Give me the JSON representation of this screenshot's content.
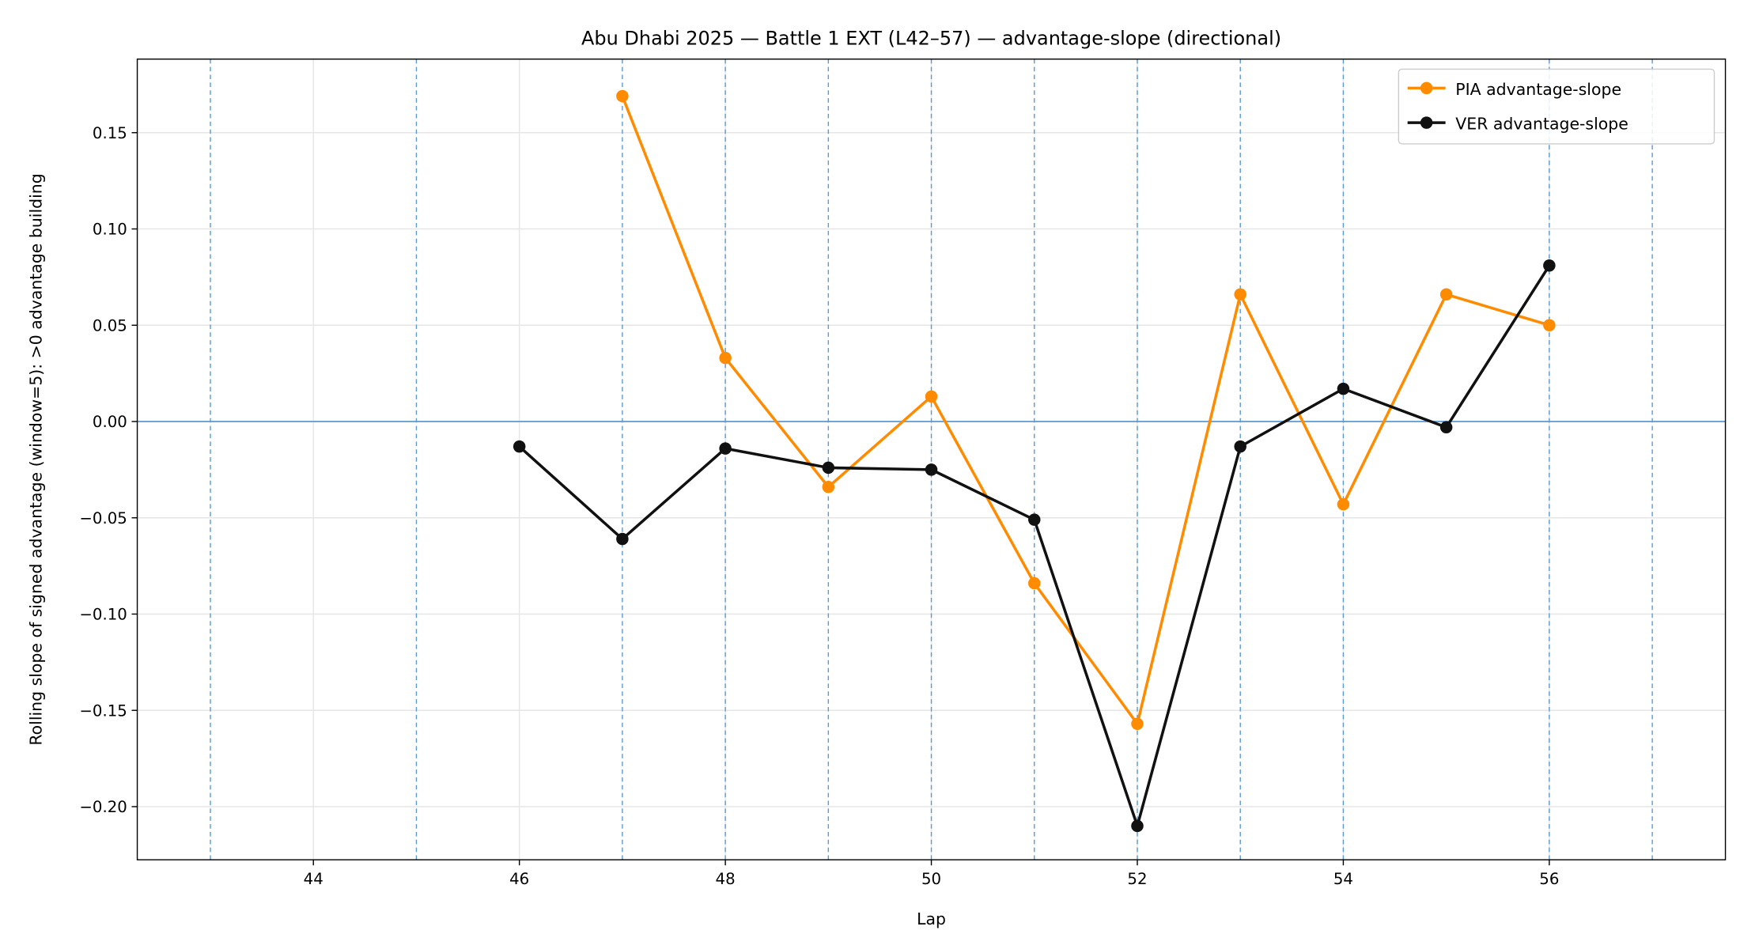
{
  "chart_data": {
    "type": "line",
    "title": "Abu Dhabi 2025 — Battle 1 EXT (L42–57) — advantage-slope (directional)",
    "xlabel": "Lap",
    "ylabel": "Rolling slope of signed advantage (window=5): >0 advantage building",
    "xlim": [
      42.29,
      57.71
    ],
    "ylim": [
      -0.2276,
      0.1882
    ],
    "xticks": [
      44,
      46,
      48,
      50,
      52,
      54,
      56
    ],
    "xtick_labels": [
      "44",
      "46",
      "48",
      "50",
      "52",
      "54",
      "56"
    ],
    "yticks": [
      -0.2,
      -0.15,
      -0.1,
      -0.05,
      0.0,
      0.05,
      0.1,
      0.15
    ],
    "ytick_labels": [
      "−0.20",
      "−0.15",
      "−0.10",
      "−0.05",
      "0.00",
      "0.05",
      "0.10",
      "0.15"
    ],
    "grid": true,
    "legend_position": "top-right",
    "zero_line": 0,
    "vertical_markers": [
      43,
      45,
      47,
      48,
      49,
      50,
      51,
      52,
      53,
      54,
      56,
      57
    ],
    "series": [
      {
        "name": "PIA advantage-slope",
        "color": "#ff8c00",
        "x": [
          47,
          48,
          49,
          50,
          51,
          52,
          53,
          54,
          55,
          56
        ],
        "y": [
          0.169,
          0.033,
          -0.034,
          0.013,
          -0.084,
          -0.157,
          0.066,
          -0.043,
          0.066,
          0.05
        ]
      },
      {
        "name": "VER advantage-slope",
        "color": "#111111",
        "x": [
          46,
          47,
          48,
          49,
          50,
          51,
          52,
          53,
          54,
          55,
          56
        ],
        "y": [
          -0.013,
          -0.061,
          -0.014,
          -0.024,
          -0.025,
          -0.051,
          -0.21,
          -0.013,
          0.017,
          -0.003,
          0.081
        ]
      }
    ]
  },
  "colors": {
    "marker_line": "#5b9bd5",
    "grid": "#e6e6e6"
  }
}
